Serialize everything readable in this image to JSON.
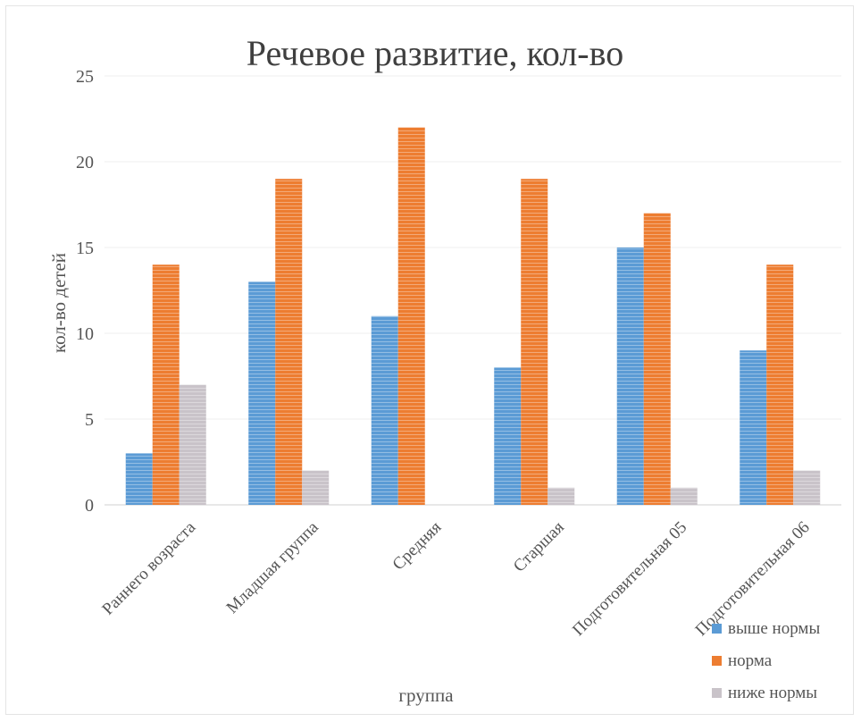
{
  "chart_data": {
    "type": "bar",
    "title": "Речевое развитие, кол-во",
    "xlabel": "группа",
    "ylabel": "кол-во детей",
    "categories": [
      "Раннего возраста",
      "Младшая группа",
      "Средняя",
      "Старшая",
      "Подготовительная 05",
      "Подготовительная 06"
    ],
    "series": [
      {
        "name": "выше нормы",
        "color": "#5b9bd5",
        "values": [
          3,
          13,
          11,
          8,
          15,
          9
        ]
      },
      {
        "name": "норма",
        "color": "#ed7d31",
        "values": [
          14,
          19,
          22,
          19,
          17,
          14
        ]
      },
      {
        "name": "ниже нормы",
        "color": "#c9c3c9",
        "values": [
          7,
          2,
          0,
          1,
          1,
          2
        ]
      }
    ],
    "ylim": [
      0,
      25
    ],
    "yticks": [
      "0",
      "5",
      "10",
      "15",
      "20",
      "25"
    ],
    "grid": true,
    "legend_position": "bottom-right"
  }
}
